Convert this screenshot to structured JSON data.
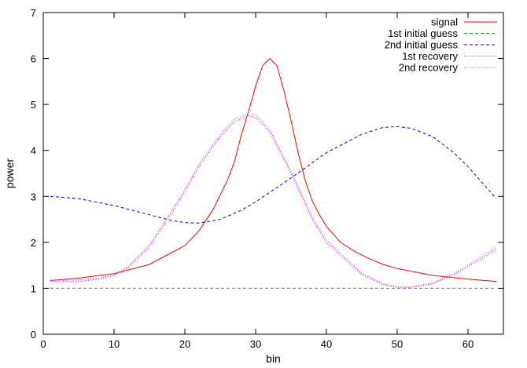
{
  "chart_data": {
    "type": "line",
    "xlabel": "bin",
    "ylabel": "power",
    "xlim": [
      0,
      65
    ],
    "ylim": [
      0,
      7
    ],
    "xticks": [
      0,
      10,
      20,
      30,
      40,
      50,
      60
    ],
    "yticks": [
      0,
      1,
      2,
      3,
      4,
      5,
      6,
      7
    ],
    "grid": false,
    "legend_position": "top-right",
    "series": [
      {
        "name": "signal",
        "color": "#ff0000",
        "dash": "solid",
        "x": [
          1,
          5,
          10,
          15,
          20,
          22,
          24,
          26,
          27,
          28,
          29,
          30,
          31,
          32,
          33,
          34,
          35,
          36,
          37,
          38,
          39,
          40,
          42,
          44,
          46,
          48,
          50,
          55,
          60,
          64
        ],
        "y": [
          1.17,
          1.22,
          1.32,
          1.52,
          1.93,
          2.25,
          2.72,
          3.35,
          3.75,
          4.35,
          4.85,
          5.4,
          5.85,
          6.0,
          5.85,
          5.3,
          4.65,
          3.95,
          3.35,
          2.9,
          2.6,
          2.35,
          2.0,
          1.8,
          1.65,
          1.52,
          1.43,
          1.28,
          1.2,
          1.15
        ]
      },
      {
        "name": "1st initial guess",
        "color": "#00cc00",
        "dash": "dashed",
        "x": [
          1,
          64
        ],
        "y": [
          1.0,
          1.0
        ]
      },
      {
        "name": "2nd initial guess",
        "color": "#0000ff",
        "dash": "dashed",
        "x": [
          1,
          5,
          10,
          15,
          18,
          20,
          22,
          25,
          28,
          30,
          35,
          40,
          45,
          48,
          50,
          52,
          55,
          58,
          60,
          62,
          64
        ],
        "y": [
          3.0,
          2.95,
          2.8,
          2.6,
          2.48,
          2.43,
          2.42,
          2.5,
          2.7,
          2.88,
          3.4,
          3.95,
          4.35,
          4.5,
          4.52,
          4.48,
          4.3,
          3.95,
          3.65,
          3.3,
          2.95
        ]
      },
      {
        "name": "1st recovery",
        "color": "#ff00ff",
        "dash": "dotted",
        "x": [
          1,
          5,
          8,
          10,
          12,
          15,
          18,
          20,
          22,
          25,
          27,
          29,
          30,
          32,
          35,
          38,
          40,
          45,
          48,
          50,
          52,
          55,
          58,
          60,
          62,
          64
        ],
        "y": [
          1.15,
          1.15,
          1.2,
          1.28,
          1.45,
          1.9,
          2.6,
          3.1,
          3.65,
          4.3,
          4.62,
          4.75,
          4.72,
          4.4,
          3.5,
          2.5,
          2.0,
          1.3,
          1.08,
          1.02,
          1.02,
          1.1,
          1.3,
          1.47,
          1.65,
          1.85
        ]
      },
      {
        "name": "2nd recovery",
        "color": "#cc44ff",
        "dash": "dotted",
        "x": [
          1,
          5,
          8,
          10,
          12,
          15,
          18,
          20,
          22,
          25,
          27,
          29,
          30,
          32,
          35,
          38,
          40,
          45,
          48,
          50,
          52,
          55,
          58,
          60,
          62,
          64
        ],
        "y": [
          1.18,
          1.18,
          1.22,
          1.3,
          1.48,
          1.95,
          2.65,
          3.15,
          3.7,
          4.35,
          4.68,
          4.8,
          4.78,
          4.45,
          3.55,
          2.55,
          2.05,
          1.33,
          1.1,
          1.03,
          1.03,
          1.12,
          1.32,
          1.5,
          1.7,
          1.9
        ]
      }
    ]
  }
}
